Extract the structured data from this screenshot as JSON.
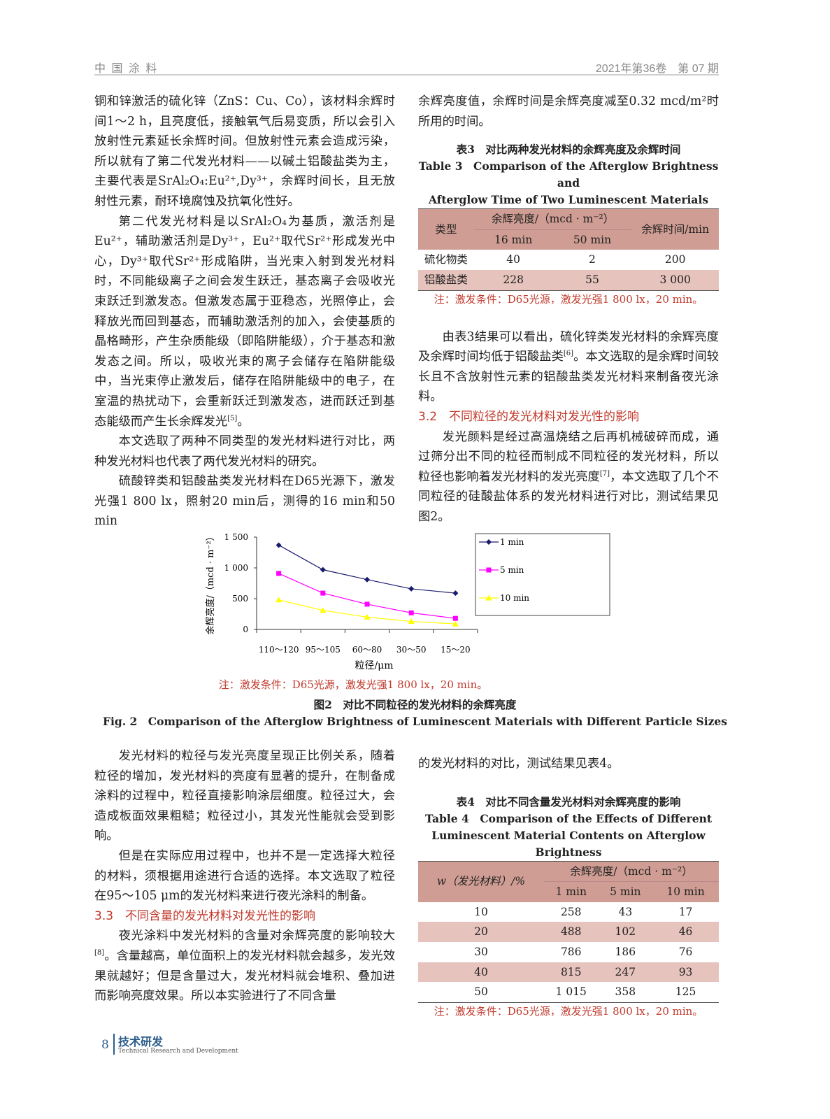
{
  "header": {
    "journal": "中 国 涂 料",
    "issue": "2021年第36卷　第 07 期"
  },
  "left_top": [
    [
      "铜和锌激活的硫化锌（ZnS：Cu、Co），该材料余辉时间1～2 h，且亮度低，接触氧气后易变质，所以会引入放射性元素延长余辉时间。但放射性元素会造成污染，所以就有了第二代发光材料——以碱土铝酸盐类为主，主要代表是SrAl₂O₄:Eu²⁺,Dy³⁺，余辉时间长，且无放射性元素，耐环境腐蚀及抗氧化性好。"
    ],
    [
      "第二代发光材料是以SrAl₂O₄为基质，激活剂是Eu²⁺，辅助激活剂是Dy³⁺，Eu²⁺取代Sr²⁺形成发光中心，Dy³⁺取代Sr²⁺形成陷阱，当光束入射到发光材料时，不同能级离子之间会发生跃迁，基态离子会吸收光束跃迁到激发态。但激发态属于亚稳态，光照停止，会释放光而回到基态，而辅助激活剂的加入，会使基质的晶格畸形，产生杂质能级（即陷阱能级），介于基态和激发态之间。所以，吸收光束的离子会储存在陷阱能级中，当光束停止激发后，储存在陷阱能级中的电子，在室温的热扰动下，会重新跃迁到激发态，进而跃迁到基态能级而产生长余辉发光",
      "[5]",
      "。"
    ],
    [
      "本文选取了两种不同类型的发光材料进行对比，两种发光材料也代表了两代发光材料的研究。"
    ],
    [
      "硫酸锌类和铝酸盐类发光材料在D65光源下，激发光强1 800 lx，照射20 min后，测得的16 min和50 min"
    ]
  ],
  "right_top": {
    "p1": "余辉亮度值，余辉时间是余辉亮度减至0.32 mcd/m²时所用的时间。",
    "table3": {
      "caption_cn": "表3　对比两种发光材料的余辉亮度及余辉时间",
      "caption_en1": "Table 3　Comparison of the Afterglow Brightness and",
      "caption_en2": "Afterglow Time of Two Luminescent Materials",
      "h_type": "类型",
      "h_bright": "余辉亮度/（mcd · m⁻²）",
      "h_16": "16 min",
      "h_50": "50 min",
      "h_time": "余辉时间/min",
      "rows": [
        [
          "硫化物类",
          "40",
          "2",
          "200"
        ],
        [
          "铝酸盐类",
          "228",
          "55",
          "3 000"
        ]
      ],
      "note": "注：激发条件：D65光源，激发光强1 800 lx，20 min。"
    },
    "p2": [
      "由表3结果可以看出，硫化锌类发光材料的余辉亮度及余辉时间均低于铝酸盐类",
      "[6]",
      "。本文选取的是余辉时间较长且不含放射性元素的铝酸盐类发光材料来制备夜光涂料。"
    ],
    "sec32": "3.2　不同粒径的发光材料对发光性的影响",
    "p3": [
      "发光颜料是经过高温烧结之后再机械破碎而成，通过筛分出不同的粒径而制成不同粒径的发光材料，所以粒径也影响着发光材料的发光亮度",
      "[7]",
      "，本文选取了几个不同粒径的硅酸盐体系的发光材料进行对比，测试结果见图2。"
    ]
  },
  "chart_data": {
    "type": "line",
    "categories": [
      "110～120",
      "95～105",
      "60～80",
      "30～50",
      "15～20"
    ],
    "xlabel": "粒径/μm",
    "ylabel": "余辉亮度/（mcd · m⁻²）",
    "ylim": [
      0,
      1500
    ],
    "yticks": [
      "0",
      "500",
      "1 000",
      "1 500"
    ],
    "ytick_values": [
      0,
      500,
      1000,
      1500
    ],
    "grid": false,
    "legend": "right",
    "series": [
      {
        "name": "1 min",
        "values": [
          1370,
          970,
          810,
          660,
          590
        ],
        "color": "#1a1a6e",
        "marker": "diamond"
      },
      {
        "name": "5 min",
        "values": [
          910,
          590,
          410,
          270,
          180
        ],
        "color": "#ff00ff",
        "marker": "square"
      },
      {
        "name": "10 min",
        "values": [
          480,
          310,
          200,
          130,
          90
        ],
        "color": "#ffff00",
        "marker": "triangle"
      }
    ]
  },
  "figure": {
    "note": "注：激发条件：D65光源，激发光强1 800 lx，20 min。",
    "caption_cn": "图2　对比不同粒径的发光材料的余辉亮度",
    "caption_en": "Fig. 2　Comparison of the Afterglow Brightness of Luminescent Materials with Different Particle Sizes"
  },
  "left_bottom": {
    "p1": "发光材料的粒径与发光亮度呈现正比例关系，随着粒径的增加，发光材料的亮度有显著的提升，在制备成涂料的过程中，粒径直接影响涂层细度。粒径过大，会造成板面效果粗糙；粒径过小，其发光性能就会受到影响。",
    "p2": "但是在实际应用过程中，也并不是一定选择大粒径的材料，须根据用途进行合适的选择。本文选取了粒径在95～105 μm的发光材料来进行夜光涂料的制备。",
    "sec33": "3.3　不同含量的发光材料对发光性的影响",
    "p3": [
      "夜光涂料中发光材料的含量对余辉亮度的影响较大",
      "[8]",
      "。含量越高，单位面积上的发光材料就会越多，发光效果就越好；但是含量过大，发光材料就会堆积、叠加进而影响亮度效果。所以本实验进行了不同含量"
    ]
  },
  "right_bottom": {
    "p1": "的发光材料的对比，测试结果见表4。",
    "table4": {
      "caption_cn": "表4　对比不同含量发光材料对余辉亮度的影响",
      "caption_en1": "Table 4　Comparison of the Effects of Different",
      "caption_en2": "Luminescent Material Contents on Afterglow Brightness",
      "h_w": "w（发光材料）/%",
      "h_bright": "余辉亮度/（mcd · m⁻²）",
      "h_1": "1 min",
      "h_5": "5 min",
      "h_10": "10 min",
      "rows": [
        [
          "10",
          "258",
          "43",
          "17"
        ],
        [
          "20",
          "488",
          "102",
          "46"
        ],
        [
          "30",
          "786",
          "186",
          "76"
        ],
        [
          "40",
          "815",
          "247",
          "93"
        ],
        [
          "50",
          "1 015",
          "358",
          "125"
        ]
      ],
      "note": "注：激发条件：D65光源，激发光强1 800 lx，20 min。"
    }
  },
  "footer": {
    "page": "8",
    "section_cn": "技术研发",
    "section_en": "Technical Research and Development"
  }
}
